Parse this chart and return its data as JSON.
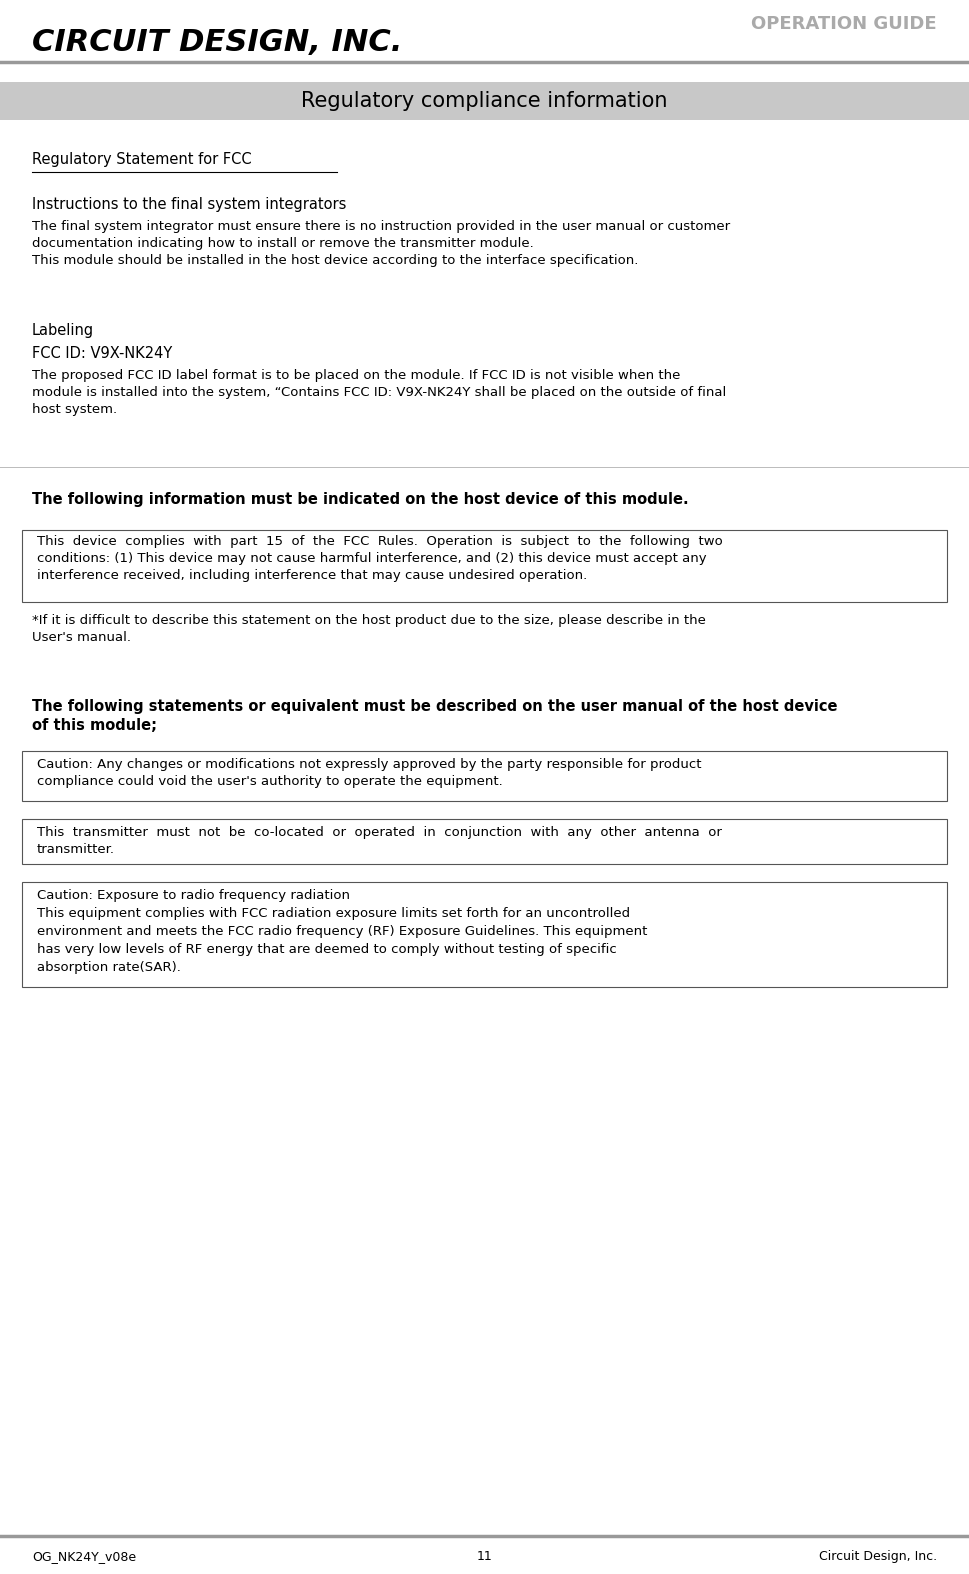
{
  "page_width": 9.69,
  "page_height": 15.74,
  "bg_color": "#ffffff",
  "header_logo_text": "CIRCUIT DESIGN, INC.",
  "header_right_text": "OPERATION GUIDE",
  "section_title": "Regulatory compliance information",
  "section_title_bg": "#c8c8c8",
  "footer_left": "OG_NK24Y_v08e",
  "footer_center": "11",
  "footer_right": "Circuit Design, Inc.",
  "underline_heading": "Regulatory Statement for FCC",
  "block1_heading": "Instructions to the final system integrators",
  "block1_body": "The final system integrator must ensure there is no instruction provided in the user manual or customer\ndocumentation indicating how to install or remove the transmitter module.\nThis module should be installed in the host device according to the interface specification.",
  "block2_heading1": "Labeling",
  "block2_heading2": "FCC ID: V9X-NK24Y",
  "block2_body": "The proposed FCC ID label format is to be placed on the module. If FCC ID is not visible when the\nmodule is installed into the system, “Contains FCC ID: V9X-NK24Y shall be placed on the outside of final\nhost system.",
  "bold_line1": "The following information must be indicated on the host device of this module.",
  "box1_text": "This  device  complies  with  part  15  of  the  FCC  Rules.  Operation  is  subject  to  the  following  two\nconditions: (1) This device may not cause harmful interference, and (2) this device must accept any\ninterference received, including interference that may cause undesired operation.",
  "italic_note": "*If it is difficult to describe this statement on the host product due to the size, please describe in the\nUser's manual.",
  "bold_line2": "The following statements or equivalent must be described on the user manual of the host device\nof this module;",
  "box2_text": "Caution: Any changes or modifications not expressly approved by the party responsible for product\ncompliance could void the user's authority to operate the equipment.",
  "box3_text": "This  transmitter  must  not  be  co-located  or  operated  in  conjunction  with  any  other  antenna  or\ntransmitter.",
  "box4_text": "Caution: Exposure to radio frequency radiation\nThis equipment complies with FCC radiation exposure limits set forth for an uncontrolled\nenvironment and meets the FCC radio frequency (RF) Exposure Guidelines. This equipment\nhas very low levels of RF energy that are deemed to comply without testing of specific\nabsorption rate(SAR).",
  "gray_line_color": "#999999",
  "box_border_color": "#555555",
  "text_color": "#000000",
  "header_gray": "#aaaaaa"
}
